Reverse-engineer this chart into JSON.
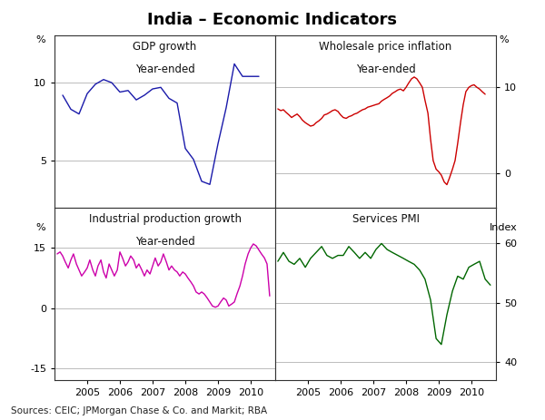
{
  "title": "India – Economic Indicators",
  "source_text": "Sources: CEIC; JPMorgan Chase & Co. and Markit; RBA",
  "background_color": "#ffffff",
  "panel_bg": "#ffffff",
  "gdp": {
    "title": "GDP growth",
    "subtitle": "Year-ended",
    "ylabel_left": "%",
    "ylim": [
      2,
      13
    ],
    "yticks": [
      5,
      10
    ],
    "yticklabels": [
      "5",
      "10"
    ],
    "color": "#1a1aaa",
    "x": [
      2004.25,
      2004.5,
      2004.75,
      2005.0,
      2005.25,
      2005.5,
      2005.75,
      2006.0,
      2006.25,
      2006.5,
      2006.75,
      2007.0,
      2007.25,
      2007.5,
      2007.75,
      2008.0,
      2008.25,
      2008.5,
      2008.75,
      2009.0,
      2009.25,
      2009.5,
      2009.75,
      2010.0,
      2010.25
    ],
    "y": [
      9.2,
      8.3,
      8.0,
      9.3,
      9.9,
      10.2,
      10.0,
      9.4,
      9.5,
      8.9,
      9.2,
      9.6,
      9.7,
      9.0,
      8.7,
      5.8,
      5.1,
      3.7,
      3.5,
      6.1,
      8.4,
      11.2,
      10.4,
      10.4,
      10.4
    ]
  },
  "wpi": {
    "title": "Wholesale price inflation",
    "subtitle": "Year-ended",
    "ylabel_right": "%",
    "ylim": [
      -4,
      16
    ],
    "yticks": [
      0,
      10
    ],
    "yticklabels": [
      "0",
      "10"
    ],
    "color": "#cc0000",
    "x": [
      2004.08,
      2004.17,
      2004.25,
      2004.33,
      2004.42,
      2004.5,
      2004.58,
      2004.67,
      2004.75,
      2004.83,
      2004.92,
      2005.0,
      2005.08,
      2005.17,
      2005.25,
      2005.33,
      2005.42,
      2005.5,
      2005.58,
      2005.67,
      2005.75,
      2005.83,
      2005.92,
      2006.0,
      2006.08,
      2006.17,
      2006.25,
      2006.33,
      2006.42,
      2006.5,
      2006.58,
      2006.67,
      2006.75,
      2006.83,
      2006.92,
      2007.0,
      2007.08,
      2007.17,
      2007.25,
      2007.33,
      2007.42,
      2007.5,
      2007.58,
      2007.67,
      2007.75,
      2007.83,
      2007.92,
      2008.0,
      2008.08,
      2008.17,
      2008.25,
      2008.33,
      2008.42,
      2008.5,
      2008.58,
      2008.67,
      2008.75,
      2008.83,
      2008.92,
      2009.0,
      2009.08,
      2009.17,
      2009.25,
      2009.33,
      2009.42,
      2009.5,
      2009.58,
      2009.67,
      2009.75,
      2009.83,
      2009.92,
      2010.0,
      2010.08,
      2010.17,
      2010.25,
      2010.33,
      2010.42
    ],
    "y": [
      7.5,
      7.3,
      7.4,
      7.1,
      6.8,
      6.5,
      6.7,
      6.9,
      6.6,
      6.2,
      5.9,
      5.7,
      5.5,
      5.6,
      5.9,
      6.1,
      6.4,
      6.8,
      6.9,
      7.1,
      7.3,
      7.4,
      7.2,
      6.8,
      6.5,
      6.4,
      6.6,
      6.7,
      6.9,
      7.0,
      7.2,
      7.4,
      7.5,
      7.7,
      7.8,
      7.9,
      8.0,
      8.1,
      8.4,
      8.6,
      8.8,
      9.0,
      9.3,
      9.5,
      9.7,
      9.8,
      9.6,
      10.0,
      10.5,
      11.0,
      11.2,
      11.0,
      10.5,
      10.0,
      8.5,
      7.0,
      4.0,
      1.5,
      0.5,
      0.2,
      -0.2,
      -1.0,
      -1.3,
      -0.5,
      0.5,
      1.5,
      3.5,
      6.0,
      8.0,
      9.5,
      10.0,
      10.2,
      10.3,
      10.0,
      9.8,
      9.5,
      9.2
    ]
  },
  "ip": {
    "title": "Industrial production growth",
    "subtitle": "Year-ended",
    "ylabel_left": "%",
    "ylim": [
      -18,
      25
    ],
    "yticks": [
      -15,
      0,
      15
    ],
    "yticklabels": [
      "-15",
      "0",
      "15"
    ],
    "color": "#cc00aa",
    "x": [
      2004.08,
      2004.17,
      2004.25,
      2004.33,
      2004.42,
      2004.5,
      2004.58,
      2004.67,
      2004.75,
      2004.83,
      2004.92,
      2005.0,
      2005.08,
      2005.17,
      2005.25,
      2005.33,
      2005.42,
      2005.5,
      2005.58,
      2005.67,
      2005.75,
      2005.83,
      2005.92,
      2006.0,
      2006.08,
      2006.17,
      2006.25,
      2006.33,
      2006.42,
      2006.5,
      2006.58,
      2006.67,
      2006.75,
      2006.83,
      2006.92,
      2007.0,
      2007.08,
      2007.17,
      2007.25,
      2007.33,
      2007.42,
      2007.5,
      2007.58,
      2007.67,
      2007.75,
      2007.83,
      2007.92,
      2008.0,
      2008.08,
      2008.17,
      2008.25,
      2008.33,
      2008.42,
      2008.5,
      2008.58,
      2008.67,
      2008.75,
      2008.83,
      2008.92,
      2009.0,
      2009.08,
      2009.17,
      2009.25,
      2009.33,
      2009.42,
      2009.5,
      2009.58,
      2009.67,
      2009.75,
      2009.83,
      2009.92,
      2010.0,
      2010.08,
      2010.17,
      2010.25,
      2010.33,
      2010.42,
      2010.5,
      2010.58
    ],
    "y": [
      13.5,
      14.0,
      13.0,
      11.5,
      10.0,
      12.0,
      13.5,
      11.0,
      9.5,
      8.0,
      9.0,
      10.0,
      12.0,
      9.5,
      8.0,
      10.5,
      12.0,
      9.0,
      7.5,
      11.0,
      9.5,
      8.0,
      9.5,
      14.0,
      12.5,
      10.5,
      11.5,
      13.0,
      12.0,
      10.0,
      11.0,
      9.5,
      8.0,
      9.5,
      8.5,
      10.5,
      12.5,
      10.5,
      11.5,
      13.5,
      11.5,
      9.5,
      10.5,
      9.5,
      9.0,
      8.0,
      9.0,
      8.5,
      7.5,
      6.5,
      5.5,
      4.0,
      3.5,
      4.0,
      3.5,
      2.5,
      1.5,
      0.5,
      0.2,
      0.5,
      1.5,
      2.5,
      2.0,
      0.5,
      1.0,
      1.5,
      3.5,
      5.5,
      8.0,
      11.0,
      13.5,
      15.0,
      16.0,
      15.5,
      14.5,
      13.5,
      12.5,
      11.0,
      3.0
    ]
  },
  "pmi": {
    "title": "Services PMI",
    "ylabel_right": "Index",
    "ylim": [
      37,
      66
    ],
    "yticks": [
      40,
      50,
      60
    ],
    "yticklabels": [
      "40",
      "50",
      "60"
    ],
    "color": "#006600",
    "x": [
      2004.08,
      2004.25,
      2004.42,
      2004.58,
      2004.75,
      2004.92,
      2005.08,
      2005.25,
      2005.42,
      2005.58,
      2005.75,
      2005.92,
      2006.08,
      2006.25,
      2006.42,
      2006.58,
      2006.75,
      2006.92,
      2007.08,
      2007.25,
      2007.42,
      2007.58,
      2007.75,
      2007.92,
      2008.08,
      2008.25,
      2008.42,
      2008.58,
      2008.75,
      2008.92,
      2009.08,
      2009.25,
      2009.42,
      2009.58,
      2009.75,
      2009.92,
      2010.08,
      2010.25,
      2010.42,
      2010.58
    ],
    "y": [
      57.0,
      58.5,
      57.0,
      56.5,
      57.5,
      56.0,
      57.5,
      58.5,
      59.5,
      58.0,
      57.5,
      58.0,
      58.0,
      59.5,
      58.5,
      57.5,
      58.5,
      57.5,
      59.0,
      60.0,
      59.0,
      58.5,
      58.0,
      57.5,
      57.0,
      56.5,
      55.5,
      54.0,
      50.5,
      44.0,
      43.0,
      48.0,
      52.0,
      54.5,
      54.0,
      56.0,
      56.5,
      57.0,
      54.0,
      53.0
    ]
  },
  "xlim": [
    2004.0,
    2010.75
  ],
  "xticks": [
    2005,
    2006,
    2007,
    2008,
    2009,
    2010
  ],
  "xticklabels": [
    "2005",
    "2006",
    "2007",
    "2008",
    "2009",
    "2010"
  ]
}
